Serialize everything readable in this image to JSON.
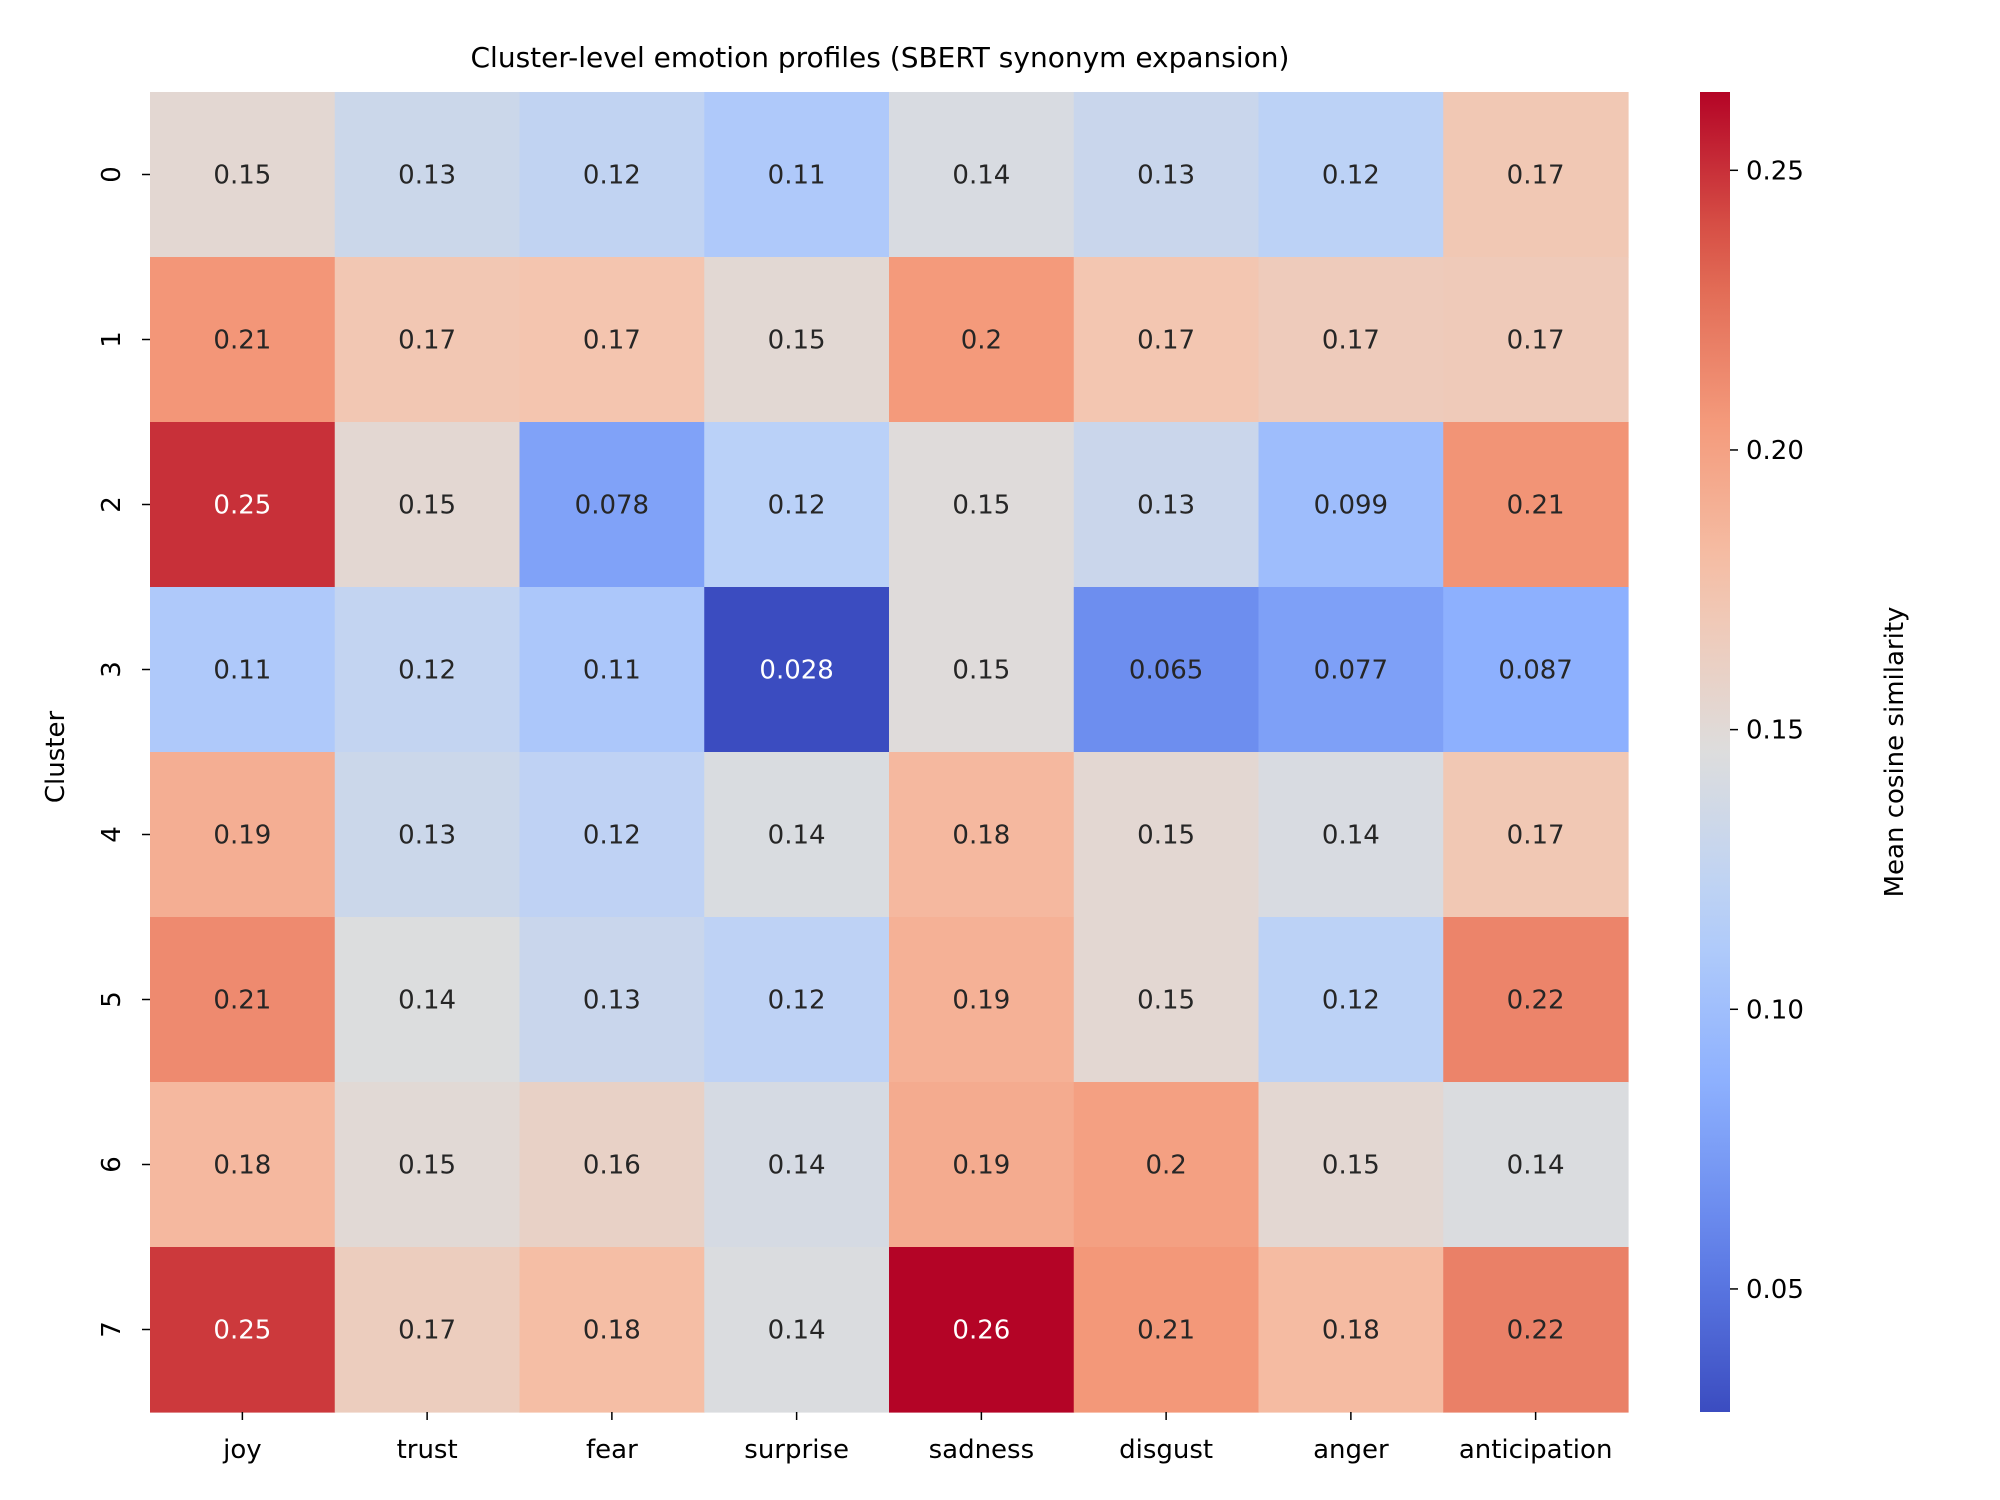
{
  "chart_data": {
    "type": "heatmap",
    "title": "Cluster-level emotion profiles (SBERT synonym expansion)",
    "xlabel": "",
    "ylabel": "Cluster",
    "columns": [
      "joy",
      "trust",
      "fear",
      "surprise",
      "sadness",
      "disgust",
      "anger",
      "anticipation"
    ],
    "rows": [
      "0",
      "1",
      "2",
      "3",
      "4",
      "5",
      "6",
      "7"
    ],
    "values": [
      [
        0.153,
        0.132,
        0.124,
        0.11,
        0.142,
        0.13,
        0.12,
        0.171
      ],
      [
        0.207,
        0.172,
        0.174,
        0.152,
        0.205,
        0.173,
        0.167,
        0.168
      ],
      [
        0.25,
        0.153,
        0.078,
        0.118,
        0.148,
        0.131,
        0.099,
        0.208
      ],
      [
        0.11,
        0.125,
        0.108,
        0.028,
        0.148,
        0.065,
        0.077,
        0.087
      ],
      [
        0.191,
        0.132,
        0.122,
        0.143,
        0.184,
        0.153,
        0.142,
        0.171
      ],
      [
        0.213,
        0.145,
        0.13,
        0.121,
        0.189,
        0.153,
        0.12,
        0.216
      ],
      [
        0.184,
        0.151,
        0.16,
        0.14,
        0.193,
        0.201,
        0.153,
        0.144
      ],
      [
        0.247,
        0.165,
        0.18,
        0.144,
        0.264,
        0.206,
        0.182,
        0.218
      ]
    ],
    "labels": [
      [
        "0.15",
        "0.13",
        "0.12",
        "0.11",
        "0.14",
        "0.13",
        "0.12",
        "0.17"
      ],
      [
        "0.21",
        "0.17",
        "0.17",
        "0.15",
        "0.2",
        "0.17",
        "0.17",
        "0.17"
      ],
      [
        "0.25",
        "0.15",
        "0.078",
        "0.12",
        "0.15",
        "0.13",
        "0.099",
        "0.21"
      ],
      [
        "0.11",
        "0.12",
        "0.11",
        "0.028",
        "0.15",
        "0.065",
        "0.077",
        "0.087"
      ],
      [
        "0.19",
        "0.13",
        "0.12",
        "0.14",
        "0.18",
        "0.15",
        "0.14",
        "0.17"
      ],
      [
        "0.21",
        "0.14",
        "0.13",
        "0.12",
        "0.19",
        "0.15",
        "0.12",
        "0.22"
      ],
      [
        "0.18",
        "0.15",
        "0.16",
        "0.14",
        "0.19",
        "0.2",
        "0.15",
        "0.14"
      ],
      [
        "0.25",
        "0.17",
        "0.18",
        "0.14",
        "0.26",
        "0.21",
        "0.18",
        "0.22"
      ]
    ],
    "colormap": "coolwarm",
    "vmin": 0.028,
    "vmax": 0.264,
    "colorbar": {
      "label": "Mean cosine similarity",
      "ticks": [
        0.05,
        0.1,
        0.15,
        0.2,
        0.25
      ],
      "tick_labels": [
        "0.05",
        "0.10",
        "0.15",
        "0.20",
        "0.25"
      ]
    },
    "grid": false,
    "legend": "none"
  }
}
